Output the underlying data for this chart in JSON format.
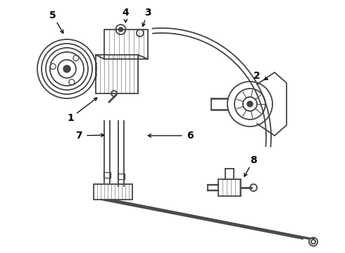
{
  "bg_color": "#ffffff",
  "line_color": "#444444",
  "figsize": [
    4.9,
    3.6
  ],
  "dpi": 100,
  "xlim": [
    0,
    490
  ],
  "ylim": [
    0,
    360
  ]
}
